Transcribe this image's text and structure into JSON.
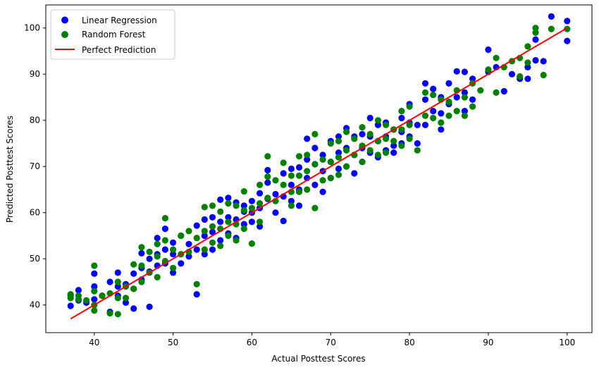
{
  "chart_data": {
    "type": "scatter",
    "xlabel": "Actual Posttest Scores",
    "ylabel": "Predicted Posttest Scores",
    "xlim": [
      33.85,
      103.15
    ],
    "ylim": [
      34.0,
      105.0
    ],
    "xticks": [
      40,
      50,
      60,
      70,
      80,
      90,
      100
    ],
    "yticks": [
      40,
      50,
      60,
      70,
      80,
      90,
      100
    ],
    "grid": false,
    "legend_position": "top-left",
    "series": [
      {
        "name": "Linear Regression",
        "color": "#0000ff",
        "marker": "circle",
        "x": [
          37,
          37,
          38,
          38,
          39,
          40,
          40,
          40,
          41,
          42,
          42,
          43,
          43,
          43,
          44,
          44,
          45,
          45,
          45,
          46,
          46,
          46,
          47,
          47,
          47,
          48,
          48,
          48,
          49,
          49,
          49,
          50,
          50,
          50,
          51,
          51,
          52,
          52,
          53,
          53,
          53,
          54,
          54,
          54,
          55,
          55,
          55,
          56,
          56,
          56,
          57,
          57,
          57,
          58,
          58,
          58,
          59,
          59,
          59,
          60,
          60,
          60,
          61,
          61,
          61,
          62,
          62,
          62,
          63,
          63,
          64,
          64,
          64,
          65,
          65,
          65,
          66,
          66,
          66,
          67,
          67,
          67,
          68,
          68,
          68,
          69,
          69,
          69,
          70,
          70,
          70,
          71,
          71,
          71,
          72,
          72,
          72,
          73,
          73,
          73,
          74,
          74,
          74,
          75,
          75,
          75,
          76,
          76,
          76,
          77,
          77,
          77,
          78,
          78,
          78,
          79,
          79,
          79,
          80,
          80,
          80,
          81,
          81,
          82,
          82,
          82,
          83,
          83,
          84,
          84,
          84,
          85,
          85,
          86,
          86,
          87,
          87,
          87,
          88,
          88,
          90,
          90,
          91,
          92,
          93,
          94,
          95,
          95,
          96,
          96,
          97,
          98,
          100,
          100
        ],
        "y": [
          39.8,
          42.0,
          43.2,
          41.0,
          40.5,
          44.0,
          46.8,
          41.2,
          42.0,
          45.0,
          38.5,
          47.0,
          44.0,
          42.0,
          40.5,
          44.5,
          39.2,
          46.8,
          43.5,
          51.2,
          48.0,
          45.5,
          47.2,
          50.0,
          39.6,
          51.0,
          54.5,
          48.5,
          52.0,
          56.5,
          49.0,
          51.0,
          53.5,
          47.0,
          55.0,
          49.0,
          53.2,
          50.5,
          57.2,
          52.0,
          42.3,
          58.5,
          55.0,
          51.0,
          59.0,
          55.8,
          52.0,
          62.8,
          58.0,
          54.0,
          63.2,
          59.0,
          55.5,
          62.2,
          58.5,
          54.5,
          60.2,
          61.5,
          57.5,
          60.0,
          58.0,
          62.5,
          64.2,
          61.0,
          57.0,
          69.2,
          66.5,
          63.0,
          64.0,
          60.0,
          68.5,
          63.5,
          58.2,
          69.5,
          66.0,
          62.5,
          69.8,
          65.0,
          61.5,
          76.0,
          71.5,
          67.5,
          74.0,
          70.5,
          66.0,
          72.5,
          69.0,
          64.5,
          75.5,
          71.0,
          67.5,
          76.5,
          73.0,
          69.5,
          78.3,
          74.0,
          70.0,
          76.5,
          72.5,
          68.5,
          77.0,
          74.0,
          71.0,
          80.5,
          76.5,
          73.0,
          79.0,
          75.5,
          72.0,
          79.5,
          76.5,
          73.5,
          78.0,
          74.5,
          73.0,
          80.5,
          77.5,
          75.0,
          83.5,
          79.5,
          76.5,
          79.0,
          75.0,
          88.0,
          84.5,
          79.0,
          86.8,
          82.0,
          85.0,
          81.5,
          78.0,
          88.0,
          83.5,
          90.6,
          85.0,
          90.5,
          86.0,
          82.0,
          89.0,
          84.5,
          95.3,
          90.5,
          91.5,
          86.3,
          90.0,
          89.0,
          91.5,
          89.0,
          97.5,
          93.0,
          92.8,
          102.5,
          101.5,
          97.2
        ]
      },
      {
        "name": "Random Forest",
        "color": "#008000",
        "marker": "circle",
        "x": [
          37,
          37,
          38,
          38,
          39,
          40,
          40,
          40,
          40,
          41,
          42,
          42,
          43,
          43,
          43,
          44,
          44,
          45,
          45,
          46,
          46,
          46,
          47,
          47,
          48,
          48,
          48,
          49,
          49,
          49,
          50,
          50,
          51,
          51,
          52,
          52,
          53,
          53,
          54,
          54,
          54,
          55,
          55,
          55,
          56,
          56,
          56,
          57,
          57,
          57,
          58,
          58,
          58,
          59,
          59,
          59,
          60,
          60,
          61,
          61,
          61,
          62,
          62,
          62,
          63,
          63,
          64,
          64,
          65,
          65,
          65,
          66,
          66,
          66,
          67,
          67,
          67,
          68,
          68,
          68,
          69,
          69,
          70,
          70,
          70,
          71,
          71,
          71,
          72,
          72,
          72,
          73,
          73,
          74,
          74,
          74,
          75,
          75,
          76,
          76,
          76,
          77,
          77,
          77,
          78,
          78,
          79,
          79,
          79,
          80,
          80,
          80,
          81,
          82,
          82,
          83,
          83,
          84,
          84,
          85,
          85,
          86,
          86,
          87,
          87,
          88,
          88,
          89,
          90,
          91,
          91,
          92,
          93,
          94,
          94,
          95,
          95,
          96,
          96,
          97,
          98,
          100
        ],
        "y": [
          42.3,
          41.5,
          42.0,
          41.2,
          41.0,
          48.5,
          43.0,
          40.0,
          38.8,
          42.0,
          42.5,
          38.2,
          45.0,
          41.5,
          38.0,
          44.0,
          41.5,
          48.8,
          43.5,
          52.5,
          48.5,
          45.0,
          51.5,
          47.0,
          50.5,
          53.2,
          46.0,
          58.8,
          54.0,
          49.5,
          52.0,
          48.0,
          55.0,
          51.0,
          56.0,
          51.5,
          54.5,
          44.5,
          61.2,
          56.0,
          52.0,
          61.5,
          57.0,
          53.5,
          60.2,
          56.5,
          52.8,
          62.0,
          58.0,
          55.0,
          61.5,
          57.5,
          54.0,
          64.6,
          60.5,
          56.5,
          61.0,
          53.3,
          66.0,
          62.0,
          58.0,
          72.2,
          67.8,
          63.2,
          67.0,
          62.5,
          70.8,
          66.0,
          68.0,
          64.5,
          61.5,
          72.2,
          68.0,
          64.5,
          72.5,
          69.0,
          65.0,
          77.0,
          70.5,
          61.0,
          71.5,
          67.0,
          75.0,
          71.0,
          67.5,
          75.5,
          72.0,
          68.2,
          77.5,
          73.5,
          70.0,
          76.0,
          72.5,
          78.5,
          74.5,
          71.0,
          77.0,
          73.5,
          80.0,
          75.5,
          72.5,
          79.0,
          76.0,
          73.0,
          78.0,
          75.5,
          82.0,
          78.0,
          74.5,
          83.0,
          79.0,
          76.0,
          73.5,
          86.0,
          81.0,
          85.5,
          80.5,
          84.5,
          79.5,
          84.0,
          81.0,
          86.5,
          82.0,
          85.0,
          81.0,
          88.0,
          83.0,
          86.5,
          91.0,
          93.5,
          86.0,
          91.5,
          92.8,
          93.5,
          89.5,
          96.0,
          92.5,
          100.0,
          99.0,
          89.8,
          99.8,
          99.8
        ]
      },
      {
        "name": "Perfect Prediction",
        "color": "#ff0000",
        "type": "line",
        "x": [
          37,
          100
        ],
        "y": [
          37,
          100
        ]
      }
    ]
  }
}
